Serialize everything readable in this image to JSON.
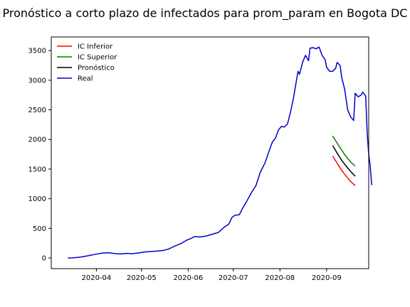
{
  "chart_data": {
    "type": "line",
    "title": "Pronóstico a corto plazo de infectados para prom_param en Bogota DC",
    "xlabel": "",
    "ylabel": "",
    "x_axis": "date",
    "xlim": [
      "2020-03-02",
      "2020-09-29"
    ],
    "ylim": [
      -180,
      3730
    ],
    "x_ticks": [
      "2020-04-01",
      "2020-05-01",
      "2020-06-01",
      "2020-07-01",
      "2020-08-01",
      "2020-09-01"
    ],
    "x_tick_labels": [
      "2020-04",
      "2020-05",
      "2020-06",
      "2020-07",
      "2020-08",
      "2020-09"
    ],
    "y_ticks": [
      0,
      500,
      1000,
      1500,
      2000,
      2500,
      3000,
      3500
    ],
    "y_tick_labels": [
      "0",
      "500",
      "1000",
      "1500",
      "2000",
      "2500",
      "3000",
      "3500"
    ],
    "grid": false,
    "legend_position": "top-left",
    "series": [
      {
        "name": "IC Inferior",
        "color": "#ff0000",
        "points": [
          [
            "2020-09-05",
            1720
          ],
          [
            "2020-09-08",
            1600
          ],
          [
            "2020-09-11",
            1480
          ],
          [
            "2020-09-14",
            1380
          ],
          [
            "2020-09-17",
            1290
          ],
          [
            "2020-09-20",
            1220
          ]
        ]
      },
      {
        "name": "IC Superior",
        "color": "#008000",
        "points": [
          [
            "2020-09-05",
            2060
          ],
          [
            "2020-09-08",
            1940
          ],
          [
            "2020-09-11",
            1820
          ],
          [
            "2020-09-14",
            1710
          ],
          [
            "2020-09-17",
            1620
          ],
          [
            "2020-09-20",
            1550
          ]
        ]
      },
      {
        "name": "Pronóstico",
        "color": "#000000",
        "points": [
          [
            "2020-09-05",
            1900
          ],
          [
            "2020-09-08",
            1770
          ],
          [
            "2020-09-11",
            1650
          ],
          [
            "2020-09-14",
            1550
          ],
          [
            "2020-09-17",
            1460
          ],
          [
            "2020-09-20",
            1380
          ]
        ]
      },
      {
        "name": "Real",
        "color": "#0000cd",
        "points": [
          [
            "2020-03-13",
            0
          ],
          [
            "2020-03-16",
            2
          ],
          [
            "2020-03-20",
            10
          ],
          [
            "2020-03-24",
            25
          ],
          [
            "2020-03-28",
            45
          ],
          [
            "2020-04-01",
            65
          ],
          [
            "2020-04-05",
            82
          ],
          [
            "2020-04-09",
            88
          ],
          [
            "2020-04-13",
            75
          ],
          [
            "2020-04-17",
            68
          ],
          [
            "2020-04-21",
            78
          ],
          [
            "2020-04-25",
            72
          ],
          [
            "2020-04-29",
            85
          ],
          [
            "2020-05-03",
            100
          ],
          [
            "2020-05-07",
            110
          ],
          [
            "2020-05-11",
            115
          ],
          [
            "2020-05-15",
            125
          ],
          [
            "2020-05-19",
            150
          ],
          [
            "2020-05-23",
            200
          ],
          [
            "2020-05-27",
            240
          ],
          [
            "2020-05-31",
            300
          ],
          [
            "2020-06-03",
            330
          ],
          [
            "2020-06-05",
            360
          ],
          [
            "2020-06-09",
            355
          ],
          [
            "2020-06-13",
            370
          ],
          [
            "2020-06-17",
            400
          ],
          [
            "2020-06-21",
            430
          ],
          [
            "2020-06-25",
            520
          ],
          [
            "2020-06-28",
            570
          ],
          [
            "2020-06-30",
            680
          ],
          [
            "2020-07-02",
            720
          ],
          [
            "2020-07-05",
            730
          ],
          [
            "2020-07-07",
            830
          ],
          [
            "2020-07-10",
            960
          ],
          [
            "2020-07-13",
            1100
          ],
          [
            "2020-07-16",
            1220
          ],
          [
            "2020-07-19",
            1450
          ],
          [
            "2020-07-22",
            1600
          ],
          [
            "2020-07-25",
            1820
          ],
          [
            "2020-07-27",
            1960
          ],
          [
            "2020-07-29",
            2020
          ],
          [
            "2020-07-31",
            2160
          ],
          [
            "2020-08-02",
            2220
          ],
          [
            "2020-08-04",
            2210
          ],
          [
            "2020-08-06",
            2260
          ],
          [
            "2020-08-08",
            2460
          ],
          [
            "2020-08-10",
            2700
          ],
          [
            "2020-08-12",
            3000
          ],
          [
            "2020-08-13",
            3150
          ],
          [
            "2020-08-14",
            3100
          ],
          [
            "2020-08-16",
            3300
          ],
          [
            "2020-08-18",
            3420
          ],
          [
            "2020-08-20",
            3330
          ],
          [
            "2020-08-21",
            3540
          ],
          [
            "2020-08-23",
            3550
          ],
          [
            "2020-08-25",
            3530
          ],
          [
            "2020-08-27",
            3560
          ],
          [
            "2020-08-29",
            3420
          ],
          [
            "2020-08-31",
            3350
          ],
          [
            "2020-09-01",
            3220
          ],
          [
            "2020-09-03",
            3150
          ],
          [
            "2020-09-05",
            3150
          ],
          [
            "2020-09-07",
            3200
          ],
          [
            "2020-09-08",
            3300
          ],
          [
            "2020-09-10",
            3250
          ],
          [
            "2020-09-11",
            3050
          ],
          [
            "2020-09-13",
            2850
          ],
          [
            "2020-09-15",
            2500
          ],
          [
            "2020-09-17",
            2380
          ],
          [
            "2020-09-19",
            2320
          ],
          [
            "2020-09-20",
            2780
          ],
          [
            "2020-09-22",
            2720
          ],
          [
            "2020-09-24",
            2750
          ],
          [
            "2020-09-25",
            2800
          ],
          [
            "2020-09-27",
            2730
          ],
          [
            "2020-09-28",
            2100
          ],
          [
            "2020-09-29",
            1750
          ],
          [
            "2020-09-30",
            1550
          ],
          [
            "2020-10-01",
            1230
          ]
        ]
      }
    ]
  }
}
